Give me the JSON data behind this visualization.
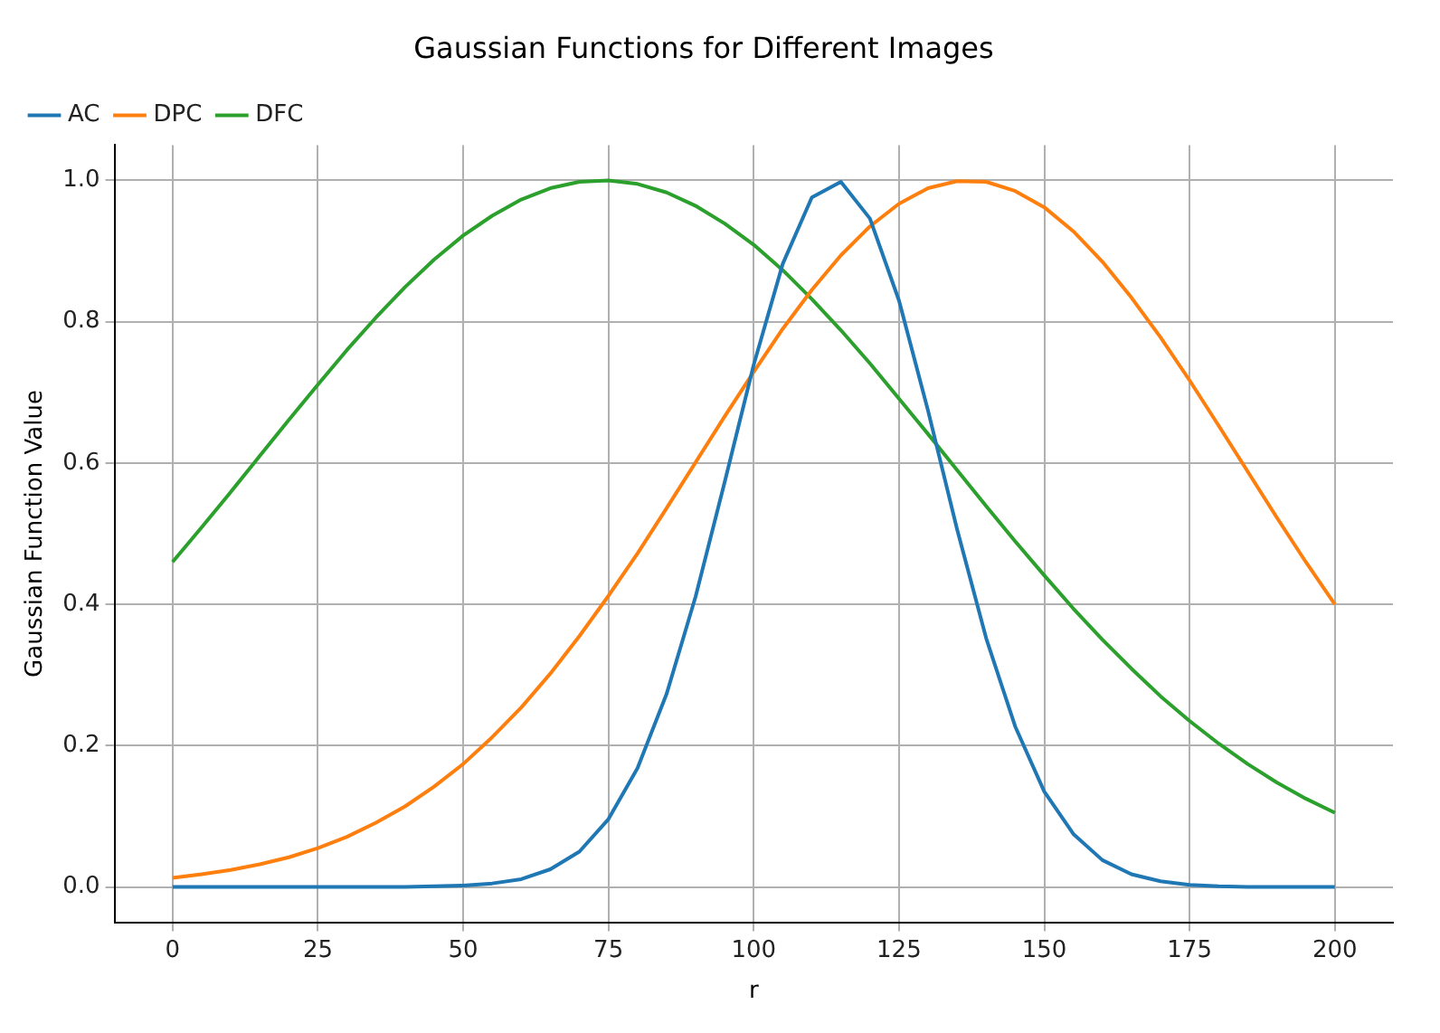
{
  "chart_data": {
    "type": "line",
    "title": "Gaussian Functions for Different Images",
    "xlabel": "r",
    "ylabel": "Gaussian Function Value",
    "x": [
      0,
      5,
      10,
      15,
      20,
      25,
      30,
      35,
      40,
      45,
      50,
      55,
      60,
      65,
      70,
      75,
      80,
      85,
      90,
      95,
      100,
      105,
      110,
      115,
      120,
      125,
      130,
      135,
      140,
      145,
      150,
      155,
      160,
      165,
      170,
      175,
      180,
      185,
      190,
      195,
      200
    ],
    "series": [
      {
        "name": "AC",
        "color": "#1f77b4",
        "values": [
          0,
          0,
          0,
          0,
          0,
          0,
          0,
          0,
          0,
          0.001,
          0.002,
          0.005,
          0.011,
          0.025,
          0.05,
          0.096,
          0.168,
          0.273,
          0.411,
          0.573,
          0.739,
          0.882,
          0.976,
          0.998,
          0.946,
          0.83,
          0.674,
          0.506,
          0.352,
          0.227,
          0.135,
          0.075,
          0.038,
          0.018,
          0.008,
          0.003,
          0.001,
          0,
          0,
          0,
          0
        ]
      },
      {
        "name": "DPC",
        "color": "#ff7f0e",
        "values": [
          0.013,
          0.018,
          0.024,
          0.032,
          0.042,
          0.055,
          0.071,
          0.091,
          0.114,
          0.142,
          0.174,
          0.212,
          0.254,
          0.302,
          0.355,
          0.412,
          0.472,
          0.536,
          0.601,
          0.666,
          0.729,
          0.79,
          0.845,
          0.894,
          0.935,
          0.967,
          0.989,
          0.999,
          0.998,
          0.985,
          0.962,
          0.928,
          0.885,
          0.834,
          0.778,
          0.717,
          0.653,
          0.588,
          0.523,
          0.46,
          0.4
        ]
      },
      {
        "name": "DFC",
        "color": "#2ca02c",
        "values": [
          0.46,
          0.509,
          0.559,
          0.61,
          0.661,
          0.711,
          0.76,
          0.806,
          0.849,
          0.888,
          0.922,
          0.95,
          0.973,
          0.989,
          0.998,
          1,
          0.995,
          0.983,
          0.964,
          0.939,
          0.909,
          0.873,
          0.832,
          0.788,
          0.741,
          0.691,
          0.641,
          0.59,
          0.539,
          0.489,
          0.441,
          0.394,
          0.35,
          0.309,
          0.27,
          0.235,
          0.203,
          0.174,
          0.148,
          0.125,
          0.105
        ]
      }
    ],
    "xlim": [
      -10,
      210
    ],
    "xticks": [
      0,
      25,
      50,
      75,
      100,
      125,
      150,
      175,
      200
    ],
    "ylim": [
      -0.05,
      1.05
    ],
    "yticks": [
      {
        "value": 0,
        "label": "0.0"
      },
      {
        "value": 0.2,
        "label": "0.2"
      },
      {
        "value": 0.4,
        "label": "0.4"
      },
      {
        "value": 0.6,
        "label": "0.6"
      },
      {
        "value": 0.8,
        "label": "0.8"
      },
      {
        "value": 1,
        "label": "1.0"
      }
    ],
    "grid": true,
    "legend": "top left",
    "marker": "none",
    "line_style": "solid"
  }
}
